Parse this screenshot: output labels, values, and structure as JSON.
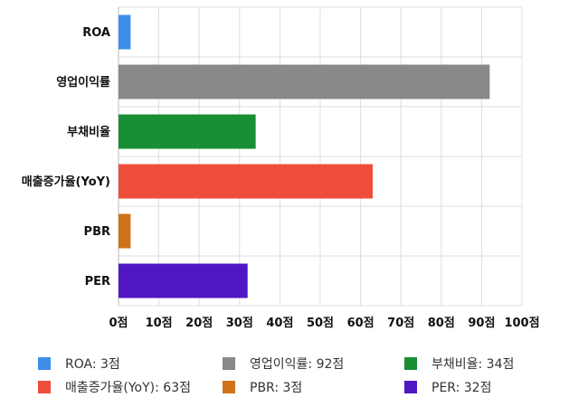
{
  "chart_data": {
    "type": "bar",
    "orientation": "horizontal",
    "categories": [
      "ROA",
      "영업이익률",
      "부채비율",
      "매출증가율(YoY)",
      "PBR",
      "PER"
    ],
    "values": [
      3,
      92,
      34,
      63,
      3,
      32
    ],
    "colors": [
      "#3c8ee8",
      "#898989",
      "#198f35",
      "#ee4d3a",
      "#cf731a",
      "#4e17c2"
    ],
    "xticks": [
      "0점",
      "10점",
      "20점",
      "30점",
      "40점",
      "50점",
      "60점",
      "70점",
      "80점",
      "90점",
      "100점"
    ],
    "xlim": [
      0,
      100
    ],
    "grid": true,
    "legend_position": "bottom",
    "legend": [
      {
        "label": "ROA: 3점",
        "color": "#3c8ee8"
      },
      {
        "label": "영업이익률: 92점",
        "color": "#898989"
      },
      {
        "label": "부채비율: 34점",
        "color": "#198f35"
      },
      {
        "label": "매출증가율(YoY): 63점",
        "color": "#ee4d3a"
      },
      {
        "label": "PBR: 3점",
        "color": "#cf731a"
      },
      {
        "label": "PER: 32점",
        "color": "#4e17c2"
      }
    ]
  }
}
